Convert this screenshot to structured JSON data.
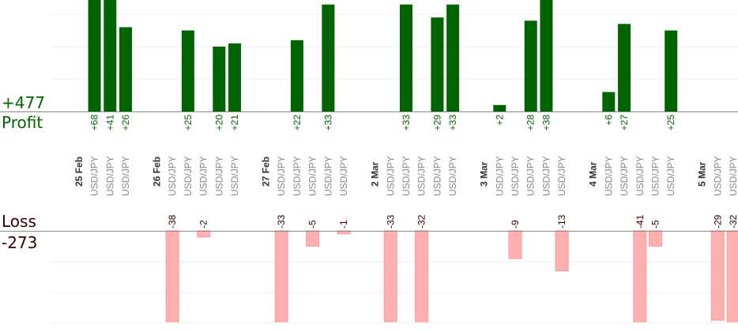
{
  "summary": {
    "profit_total": "+477",
    "profit_label": "Profit",
    "loss_label": "Loss",
    "loss_total": "-273"
  },
  "colors": {
    "profit_bar": "#006400",
    "profit_text": "#006400",
    "loss_bar": "#ffb0b0",
    "loss_text": "#330000",
    "category_text": "#888888",
    "date_text": "#333333",
    "grid": "#eeeeee",
    "baseline": "#888888"
  },
  "chart_data": {
    "type": "bar",
    "columns": [
      {
        "label": "25 Feb",
        "kind": "date"
      },
      {
        "label": "USD/JPY",
        "kind": "trade",
        "value": 68,
        "text": "+68"
      },
      {
        "label": "USD/JPY",
        "kind": "trade",
        "value": 41,
        "text": "+41"
      },
      {
        "label": "USD/JPY",
        "kind": "trade",
        "value": 26,
        "text": "+26"
      },
      {
        "label": "",
        "kind": "spacer"
      },
      {
        "label": "26 Feb",
        "kind": "date"
      },
      {
        "label": "USD/JPY",
        "kind": "trade",
        "value": -38,
        "text": "-38"
      },
      {
        "label": "USD/JPY",
        "kind": "trade",
        "value": 25,
        "text": "+25"
      },
      {
        "label": "USD/JPY",
        "kind": "trade",
        "value": -2,
        "text": "-2"
      },
      {
        "label": "USD/JPY",
        "kind": "trade",
        "value": 20,
        "text": "+20"
      },
      {
        "label": "USD/JPY",
        "kind": "trade",
        "value": 21,
        "text": "+21"
      },
      {
        "label": "",
        "kind": "spacer"
      },
      {
        "label": "27 Feb",
        "kind": "date"
      },
      {
        "label": "USD/JPY",
        "kind": "trade",
        "value": -33,
        "text": "-33"
      },
      {
        "label": "USD/JPY",
        "kind": "trade",
        "value": 22,
        "text": "+22"
      },
      {
        "label": "USD/JPY",
        "kind": "trade",
        "value": -5,
        "text": "-5"
      },
      {
        "label": "USD/JPY",
        "kind": "trade",
        "value": 33,
        "text": "+33"
      },
      {
        "label": "USD/JPY",
        "kind": "trade",
        "value": -1,
        "text": "-1"
      },
      {
        "label": "",
        "kind": "spacer"
      },
      {
        "label": "2 Mar",
        "kind": "date"
      },
      {
        "label": "USD/JPY",
        "kind": "trade",
        "value": -33,
        "text": "-33"
      },
      {
        "label": "USD/JPY",
        "kind": "trade",
        "value": 33,
        "text": "+33"
      },
      {
        "label": "USD/JPY",
        "kind": "trade",
        "value": -32,
        "text": "-32"
      },
      {
        "label": "USD/JPY",
        "kind": "trade",
        "value": 29,
        "text": "+29"
      },
      {
        "label": "USD/JPY",
        "kind": "trade",
        "value": 33,
        "text": "+33"
      },
      {
        "label": "",
        "kind": "spacer"
      },
      {
        "label": "3 Mar",
        "kind": "date"
      },
      {
        "label": "USD/JPY",
        "kind": "trade",
        "value": 2,
        "text": "+2"
      },
      {
        "label": "USD/JPY",
        "kind": "trade",
        "value": -9,
        "text": "-9"
      },
      {
        "label": "USD/JPY",
        "kind": "trade",
        "value": 28,
        "text": "+28"
      },
      {
        "label": "USD/JPY",
        "kind": "trade",
        "value": 38,
        "text": "+38"
      },
      {
        "label": "USD/JPY",
        "kind": "trade",
        "value": -13,
        "text": "-13"
      },
      {
        "label": "",
        "kind": "spacer"
      },
      {
        "label": "4 Mar",
        "kind": "date"
      },
      {
        "label": "USD/JPY",
        "kind": "trade",
        "value": 6,
        "text": "+6"
      },
      {
        "label": "USD/JPY",
        "kind": "trade",
        "value": 27,
        "text": "+27"
      },
      {
        "label": "USD/JPY",
        "kind": "trade",
        "value": -41,
        "text": "-41"
      },
      {
        "label": "USD/JPY",
        "kind": "trade",
        "value": -5,
        "text": "-5"
      },
      {
        "label": "USD/JPY",
        "kind": "trade",
        "value": 25,
        "text": "+25"
      },
      {
        "label": "",
        "kind": "spacer"
      },
      {
        "label": "5 Mar",
        "kind": "date"
      },
      {
        "label": "USD/JPY",
        "kind": "trade",
        "value": -29,
        "text": "-29"
      },
      {
        "label": "USD/JPY",
        "kind": "trade",
        "value": -32,
        "text": "-32"
      }
    ],
    "profit_ylim": [
      0,
      40
    ],
    "loss_ylim": [
      0,
      30
    ],
    "grid": true
  }
}
